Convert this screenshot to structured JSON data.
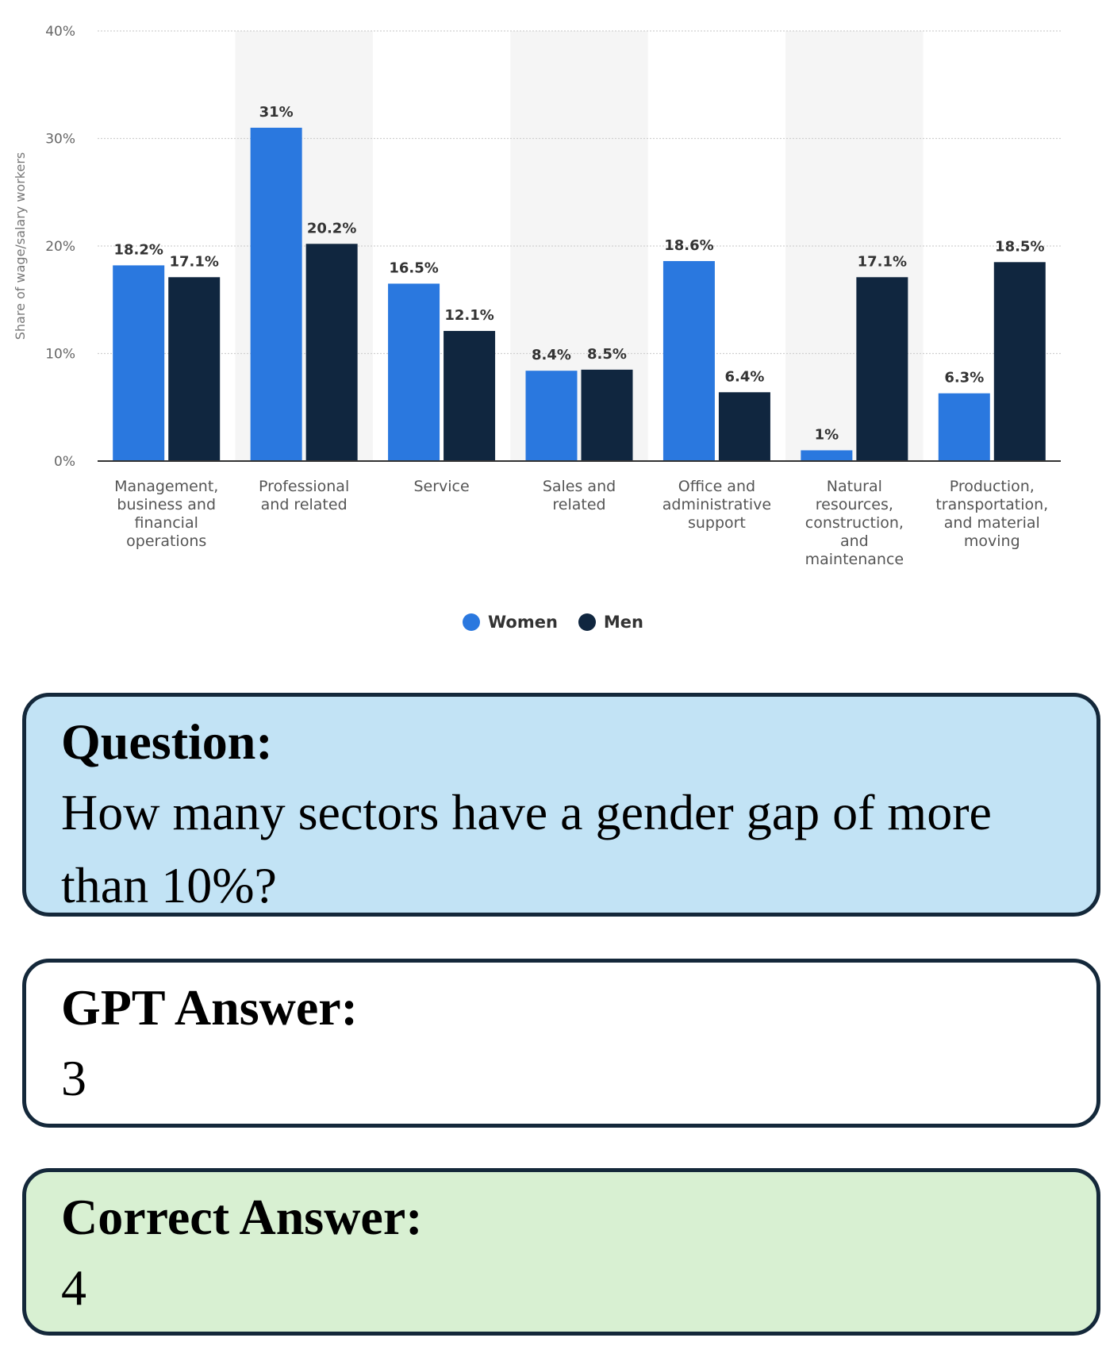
{
  "chart_data": {
    "type": "bar",
    "ylabel": "Share of wage/salary workers",
    "y_ticks": [
      "0%",
      "10%",
      "20%",
      "30%",
      "40%"
    ],
    "ylim": [
      0,
      40
    ],
    "categories": [
      [
        "Management,",
        "business and",
        "financial",
        "operations"
      ],
      [
        "Professional",
        "and related"
      ],
      [
        "Service"
      ],
      [
        "Sales and",
        "related"
      ],
      [
        "Office and",
        "administrative",
        "support"
      ],
      [
        "Natural",
        "resources,",
        "construction,",
        "and",
        "maintenance"
      ],
      [
        "Production,",
        "transportation,",
        "and material",
        "moving"
      ]
    ],
    "series": [
      {
        "name": "Women",
        "values": [
          18.2,
          31,
          16.5,
          8.4,
          18.6,
          1,
          6.3
        ],
        "labels": [
          "18.2%",
          "31%",
          "16.5%",
          "8.4%",
          "18.6%",
          "1%",
          "6.3%"
        ],
        "color": "#2a78df"
      },
      {
        "name": "Men",
        "values": [
          17.1,
          20.2,
          12.1,
          8.5,
          6.4,
          17.1,
          18.5
        ],
        "labels": [
          "17.1%",
          "20.2%",
          "12.1%",
          "8.5%",
          "6.4%",
          "17.1%",
          "18.5%"
        ],
        "color": "#10263f"
      }
    ],
    "grid": true,
    "legend_position": "bottom"
  },
  "question": {
    "title": "Question:",
    "text": "How many sectors have a gender gap of more than 10%?",
    "background": "#c2e3f5"
  },
  "gpt_answer": {
    "title": "GPT Answer:",
    "text": "3",
    "background": "#ffffff"
  },
  "correct_answer": {
    "title": "Correct Answer:",
    "text": "4",
    "background": "#d8f0d2"
  }
}
